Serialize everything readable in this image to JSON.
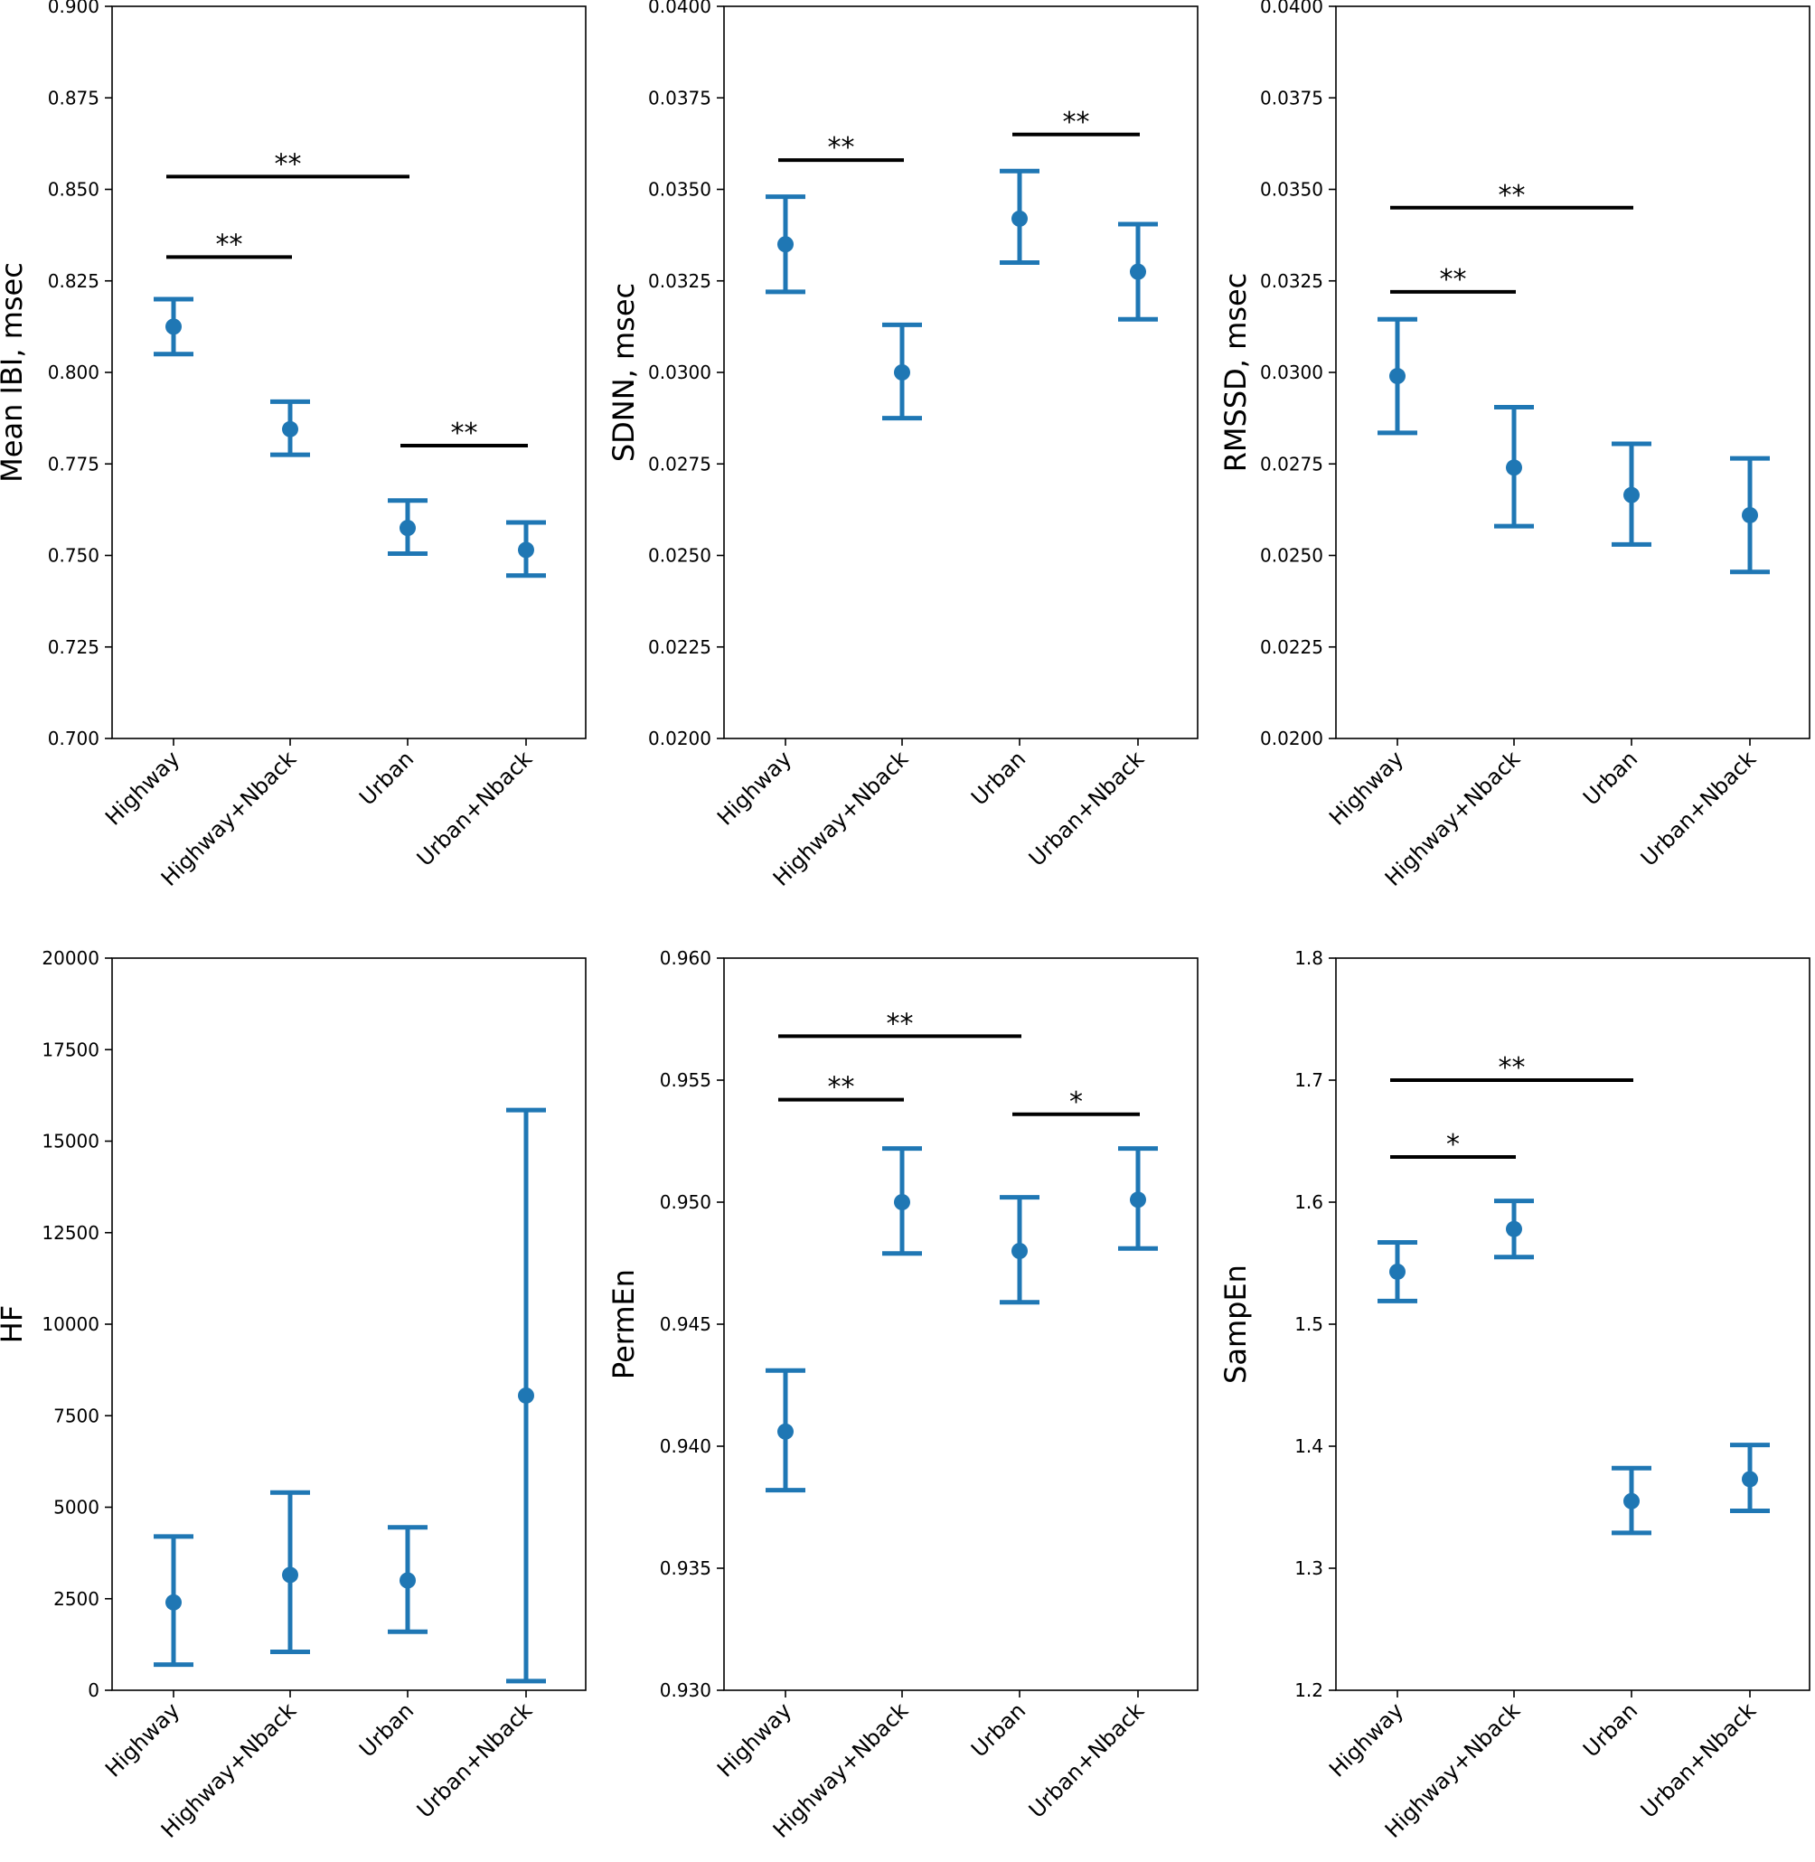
{
  "figure": {
    "background": "#ffffff",
    "marker_color": "#1f77b4",
    "bracket_color": "#000000"
  },
  "chart_data": [
    {
      "type": "scatter",
      "ylabel": "Mean IBI, msec",
      "categories": [
        "Highway",
        "Highway+Nback",
        "Urban",
        "Urban+Nback"
      ],
      "ylim": [
        0.7,
        0.9
      ],
      "yticks": [
        "0.700",
        "0.725",
        "0.750",
        "0.775",
        "0.800",
        "0.825",
        "0.850",
        "0.875",
        "0.900"
      ],
      "series": [
        {
          "mean": [
            0.8125,
            0.7845,
            0.7575,
            0.7515
          ],
          "ci_low": [
            0.805,
            0.7775,
            0.7505,
            0.7445
          ],
          "ci_high": [
            0.82,
            0.792,
            0.765,
            0.759
          ]
        }
      ],
      "significance": [
        {
          "from": 0,
          "to": 2,
          "y": 0.8535,
          "label": "**"
        },
        {
          "from": 0,
          "to": 1,
          "y": 0.8315,
          "label": "**"
        },
        {
          "from": 2,
          "to": 3,
          "y": 0.78,
          "label": "**"
        }
      ],
      "grid": false
    },
    {
      "type": "scatter",
      "ylabel": "SDNN, msec",
      "categories": [
        "Highway",
        "Highway+Nback",
        "Urban",
        "Urban+Nback"
      ],
      "ylim": [
        0.02,
        0.04
      ],
      "yticks": [
        "0.0200",
        "0.0225",
        "0.0250",
        "0.0275",
        "0.0300",
        "0.0325",
        "0.0350",
        "0.0375",
        "0.0400"
      ],
      "series": [
        {
          "mean": [
            0.0335,
            0.03,
            0.0342,
            0.03275
          ],
          "ci_low": [
            0.0322,
            0.02875,
            0.033,
            0.03145
          ],
          "ci_high": [
            0.0348,
            0.0313,
            0.0355,
            0.03405
          ]
        }
      ],
      "significance": [
        {
          "from": 0,
          "to": 1,
          "y": 0.0358,
          "label": "**"
        },
        {
          "from": 2,
          "to": 3,
          "y": 0.0365,
          "label": "**"
        }
      ],
      "grid": false
    },
    {
      "type": "scatter",
      "ylabel": "RMSSD, msec",
      "categories": [
        "Highway",
        "Highway+Nback",
        "Urban",
        "Urban+Nback"
      ],
      "ylim": [
        0.02,
        0.04
      ],
      "yticks": [
        "0.0200",
        "0.0225",
        "0.0250",
        "0.0275",
        "0.0300",
        "0.0325",
        "0.0350",
        "0.0375",
        "0.0400"
      ],
      "series": [
        {
          "mean": [
            0.0299,
            0.0274,
            0.02665,
            0.0261
          ],
          "ci_low": [
            0.02835,
            0.0258,
            0.0253,
            0.02455
          ],
          "ci_high": [
            0.03145,
            0.02905,
            0.02805,
            0.02765
          ]
        }
      ],
      "significance": [
        {
          "from": 0,
          "to": 2,
          "y": 0.0345,
          "label": "**"
        },
        {
          "from": 0,
          "to": 1,
          "y": 0.0322,
          "label": "**"
        }
      ],
      "grid": false
    },
    {
      "type": "scatter",
      "ylabel": "HF",
      "categories": [
        "Highway",
        "Highway+Nback",
        "Urban",
        "Urban+Nback"
      ],
      "ylim": [
        0,
        20000
      ],
      "yticks": [
        "0",
        "2500",
        "5000",
        "7500",
        "10000",
        "12500",
        "15000",
        "17500",
        "20000"
      ],
      "series": [
        {
          "mean": [
            2400,
            3150,
            3000,
            8050
          ],
          "ci_low": [
            700,
            1050,
            1600,
            250
          ],
          "ci_high": [
            4200,
            5400,
            4450,
            15850
          ]
        }
      ],
      "significance": [],
      "grid": false
    },
    {
      "type": "scatter",
      "ylabel": "PermEn",
      "categories": [
        "Highway",
        "Highway+Nback",
        "Urban",
        "Urban+Nback"
      ],
      "ylim": [
        0.93,
        0.96
      ],
      "yticks": [
        "0.930",
        "0.935",
        "0.940",
        "0.945",
        "0.950",
        "0.955",
        "0.960"
      ],
      "series": [
        {
          "mean": [
            0.9406,
            0.95,
            0.948,
            0.9501
          ],
          "ci_low": [
            0.9382,
            0.9479,
            0.9459,
            0.9481
          ],
          "ci_high": [
            0.9431,
            0.9522,
            0.9502,
            0.9522
          ]
        }
      ],
      "significance": [
        {
          "from": 0,
          "to": 2,
          "y": 0.9568,
          "label": "**"
        },
        {
          "from": 0,
          "to": 1,
          "y": 0.9542,
          "label": "**"
        },
        {
          "from": 2,
          "to": 3,
          "y": 0.9536,
          "label": "*"
        }
      ],
      "grid": false
    },
    {
      "type": "scatter",
      "ylabel": "SampEn",
      "categories": [
        "Highway",
        "Highway+Nback",
        "Urban",
        "Urban+Nback"
      ],
      "ylim": [
        1.2,
        1.8
      ],
      "yticks": [
        "1.2",
        "1.3",
        "1.4",
        "1.5",
        "1.6",
        "1.7",
        "1.8"
      ],
      "series": [
        {
          "mean": [
            1.543,
            1.578,
            1.355,
            1.373
          ],
          "ci_low": [
            1.519,
            1.555,
            1.329,
            1.347
          ],
          "ci_high": [
            1.567,
            1.601,
            1.382,
            1.401
          ]
        }
      ],
      "significance": [
        {
          "from": 0,
          "to": 2,
          "y": 1.7,
          "label": "**"
        },
        {
          "from": 0,
          "to": 1,
          "y": 1.637,
          "label": "*"
        }
      ],
      "grid": false
    }
  ]
}
